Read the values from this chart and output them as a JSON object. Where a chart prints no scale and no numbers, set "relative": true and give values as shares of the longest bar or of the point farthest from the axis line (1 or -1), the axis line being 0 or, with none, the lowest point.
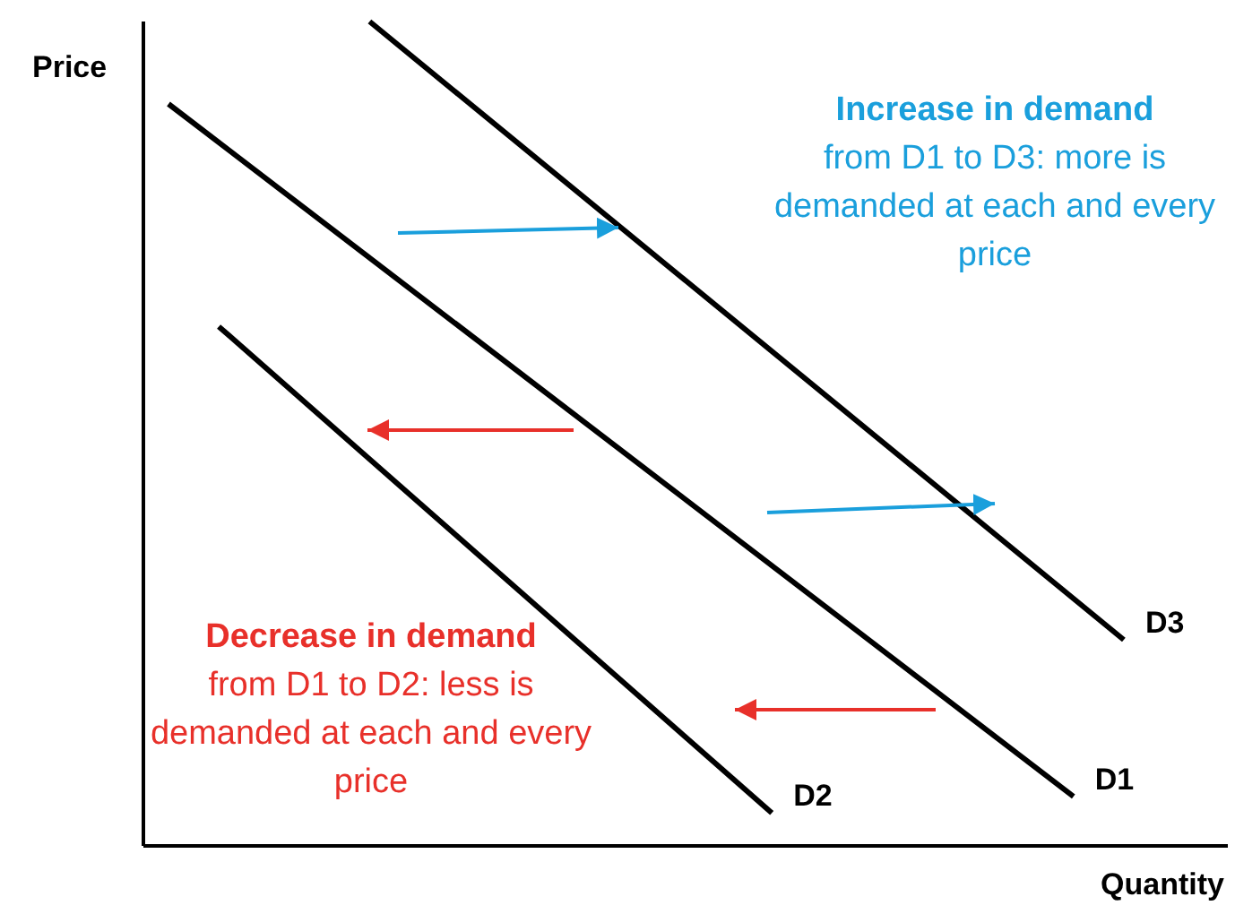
{
  "chart_data": {
    "type": "line",
    "relative": true,
    "xlabel": "Quantity",
    "ylabel": "Price",
    "line_style": "solid",
    "categories": [
      null,
      null,
      null,
      null,
      null,
      null,
      null,
      null,
      null,
      null,
      null,
      null,
      null,
      null,
      null,
      null,
      null,
      null,
      null,
      null,
      null
    ],
    "series": [
      {
        "name": "D3",
        "color": "#000000",
        "values": [
          null,
          null,
          null,
          null,
          1.0,
          null,
          null,
          null,
          null,
          null,
          null,
          null,
          null,
          null,
          null,
          null,
          null,
          null,
          null,
          0.25,
          null
        ]
      },
      {
        "name": "D1",
        "color": "#000000",
        "values": [
          0.9,
          null,
          null,
          null,
          null,
          null,
          null,
          null,
          null,
          null,
          null,
          null,
          null,
          null,
          null,
          null,
          null,
          null,
          0.06,
          null,
          null
        ]
      },
      {
        "name": "D2",
        "color": "#000000",
        "values": [
          null,
          0.63,
          null,
          null,
          null,
          null,
          null,
          null,
          null,
          null,
          null,
          null,
          0.04,
          null,
          null,
          null,
          null,
          null,
          null,
          null,
          null
        ]
      }
    ],
    "annotations": [
      "Increase in demand",
      "from D1 to D3: more is demanded at each and every price",
      "Decrease in demand",
      "from D1 to D2: less is demanded at each and every price"
    ]
  }
}
